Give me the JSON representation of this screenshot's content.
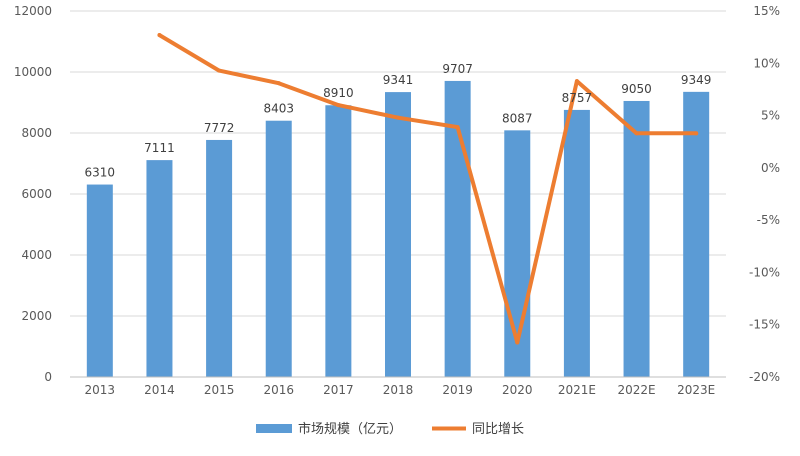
{
  "chart_data": {
    "type": "bar",
    "categories": [
      "2013",
      "2014",
      "2015",
      "2016",
      "2017",
      "2018",
      "2019",
      "2020",
      "2021E",
      "2022E",
      "2023E"
    ],
    "series": [
      {
        "name": "市场规模（亿元）",
        "type": "bar",
        "axis": "left",
        "color": "#5B9BD5",
        "values": [
          6310,
          7111,
          7772,
          8403,
          8910,
          9341,
          9707,
          8087,
          8757,
          9050,
          9349
        ]
      },
      {
        "name": "同比增长",
        "type": "line",
        "axis": "right",
        "color": "#ED7D31",
        "values": [
          null,
          12.7,
          9.3,
          8.1,
          6.0,
          4.8,
          3.9,
          -16.7,
          8.3,
          3.3,
          3.3
        ]
      }
    ],
    "ylim_left": [
      0,
      12000
    ],
    "left_ticks": [
      "0",
      "2000",
      "4000",
      "6000",
      "8000",
      "10000",
      "12000"
    ],
    "ylim_right": [
      -20,
      15
    ],
    "right_ticks": [
      "-20%",
      "-15%",
      "-10%",
      "-5%",
      "0%",
      "5%",
      "10%",
      "15%"
    ],
    "legend_position": "bottom",
    "grid": true,
    "legend": {
      "bar_label": "市场规模（亿元）",
      "line_label": "同比增长"
    }
  }
}
